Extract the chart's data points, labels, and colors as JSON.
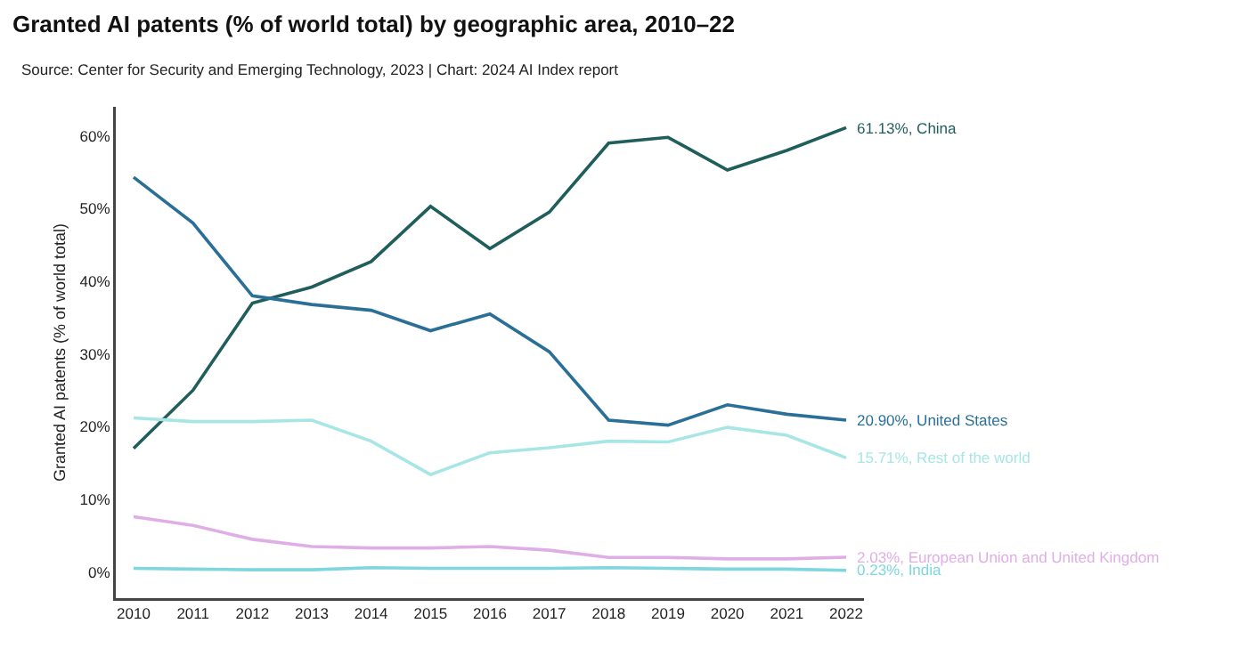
{
  "chart_data": {
    "type": "line",
    "title": "Granted AI patents (% of world total) by geographic area, 2010–22",
    "subtitle": "Source: Center for Security and Emerging Technology, 2023 | Chart: 2024 AI Index report",
    "ylabel": "Granted AI patents (% of world total)",
    "x": [
      2010,
      2011,
      2012,
      2013,
      2014,
      2015,
      2016,
      2017,
      2018,
      2019,
      2020,
      2021,
      2022
    ],
    "xlim": [
      2009.7,
      2022.3
    ],
    "xticks": [
      2010,
      2011,
      2012,
      2013,
      2014,
      2015,
      2016,
      2017,
      2018,
      2019,
      2020,
      2021,
      2022
    ],
    "ylim": [
      -3.6,
      64
    ],
    "yticks": [
      {
        "value": 0,
        "label": "0%"
      },
      {
        "value": 10,
        "label": "10%"
      },
      {
        "value": 20,
        "label": "20%"
      },
      {
        "value": 30,
        "label": "30%"
      },
      {
        "value": 40,
        "label": "40%"
      },
      {
        "value": 50,
        "label": "50%"
      },
      {
        "value": 60,
        "label": "60%"
      }
    ],
    "grid": false,
    "legend": false,
    "marker": "none",
    "line_style": "solid",
    "series": [
      {
        "name": "61.13%, China",
        "color": "#1f5e5b",
        "values": [
          17,
          25,
          37,
          39.2,
          42.7,
          50.3,
          44.5,
          49.5,
          59,
          59.8,
          55.3,
          58,
          61.13
        ]
      },
      {
        "name": "20.90%, United States",
        "color": "#2a6f97",
        "values": [
          54.3,
          48,
          38,
          36.8,
          36,
          33.2,
          35.5,
          30.3,
          20.9,
          20.2,
          23,
          21.7,
          20.9
        ]
      },
      {
        "name": "15.71%, Rest of the world",
        "color": "#a8e6e6",
        "values": [
          21.2,
          20.7,
          20.7,
          20.9,
          18,
          13.4,
          16.4,
          17.1,
          18,
          17.9,
          19.9,
          18.8,
          15.71
        ]
      },
      {
        "name": "2.03%, European Union and United Kingdom",
        "color": "#e0aee6",
        "values": [
          7.6,
          6.4,
          4.5,
          3.5,
          3.3,
          3.3,
          3.5,
          3,
          2,
          2,
          1.8,
          1.8,
          2.03
        ]
      },
      {
        "name": "0.23%, India",
        "color": "#7fd6df",
        "values": [
          0.5,
          0.4,
          0.3,
          0.3,
          0.6,
          0.5,
          0.5,
          0.5,
          0.6,
          0.5,
          0.4,
          0.4,
          0.23
        ]
      }
    ]
  }
}
